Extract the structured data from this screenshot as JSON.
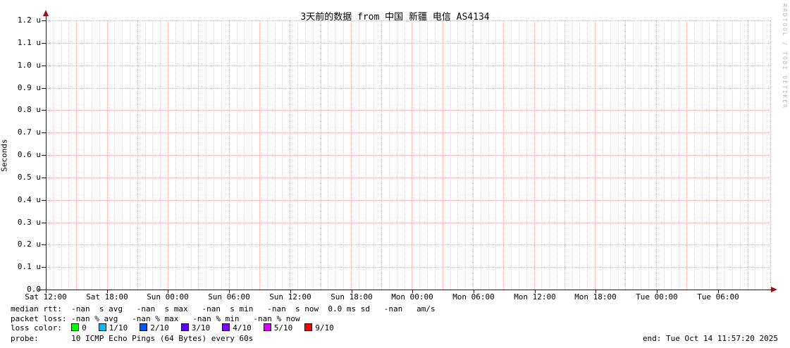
{
  "window": {
    "title": "3天前的数据 from 中国 新疆 电信 AS4134"
  },
  "chart_data": {
    "type": "line",
    "title": "3天前的数据 from 中国 新疆 电信 AS4134",
    "xlabel": "",
    "ylabel": "Seconds",
    "y_unit": "u (microseconds)",
    "ylim": [
      0.0,
      1.2e-06
    ],
    "grid": "on",
    "x_tick_labels": [
      "Sat 12:00",
      "Sat 18:00",
      "Sun 00:00",
      "Sun 06:00",
      "Sun 12:00",
      "Sun 18:00",
      "Mon 00:00",
      "Mon 06:00",
      "Mon 12:00",
      "Mon 18:00",
      "Tue 00:00",
      "Tue 06:00"
    ],
    "y_tick_labels": [
      "1.2 u",
      "1.1 u",
      "1.0 u",
      "0.9 u",
      "0.8 u",
      "0.7 u",
      "0.6 u",
      "0.5 u",
      "0.4 u",
      "0.3 u",
      "0.2 u",
      "0.1 u",
      "0.0"
    ],
    "series": [
      {
        "name": "median rtt",
        "values": [],
        "note": "no data plotted; all statistics are -nan"
      }
    ],
    "legend_position": "bottom"
  },
  "watermark": "RRDTOOL / TOBI OETIKER",
  "stats": {
    "median_rtt_line": "median rtt:  -nan  s avg   -nan  s max   -nan  s min   -nan  s now  0.0 ms sd   -nan   am/s",
    "packet_loss_line": "packet loss: -nan % avg   -nan % max   -nan % min   -nan % now",
    "loss_color_prefix": "loss color:  ",
    "probe_line": "probe:       10 ICMP Echo Pings (64 Bytes) every 60s",
    "end_line": "end: Tue Oct 14 11:57:20 2025"
  },
  "loss_legend": [
    {
      "label": "0",
      "color": "#00ff00"
    },
    {
      "label": "1/10",
      "color": "#00b8ff"
    },
    {
      "label": "2/10",
      "color": "#0059ff"
    },
    {
      "label": "3/10",
      "color": "#5e00ff"
    },
    {
      "label": "4/10",
      "color": "#7e00ff"
    },
    {
      "label": "5/10",
      "color": "#dd00ff"
    },
    {
      "label": "9/10",
      "color": "#ff0000"
    }
  ],
  "colors": {
    "grid_major": "#f5a9a9",
    "grid_minor": "#d6d6d6",
    "axis": "#1c1c1c",
    "arrow": "#9e0e0e",
    "watermark": "#b9b9b9"
  }
}
